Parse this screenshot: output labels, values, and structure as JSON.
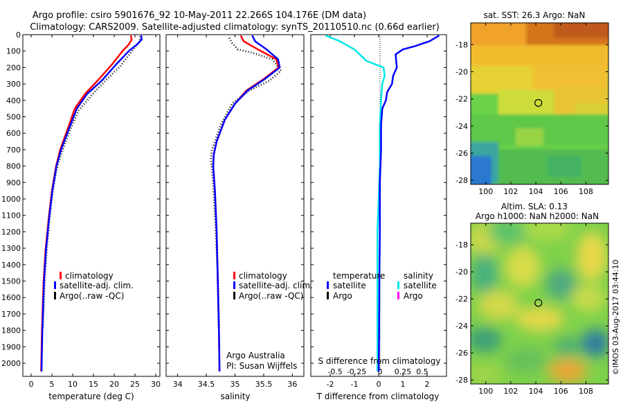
{
  "header": {
    "line1": "Argo profile: csiro 5901676_92 10-May-2011 22.266S 104.176E (DM data)",
    "line2": "Climatology: CARS2009. Satellite-adjusted climatology: synTS_20110510.nc (0.66d earlier)"
  },
  "credit": {
    "text": "Argo Australia",
    "pi": "PI: Susan Wijffels"
  },
  "timestamp": "©IMOS 03-Aug-2017 03:44:10",
  "colors": {
    "climatology": "#ff0000",
    "satellite": "#0000ff",
    "argo": "#000000",
    "s_satellite": "#00e6e6",
    "s_argo": "#ff00ff"
  },
  "chart_data": [
    {
      "type": "line",
      "xlabel": "temperature (deg C)",
      "xlim": [
        -2,
        31
      ],
      "xticks": [
        0,
        5,
        10,
        15,
        20,
        25,
        30
      ],
      "ylim": [
        0,
        2080
      ],
      "yticks": [
        0,
        100,
        200,
        300,
        400,
        500,
        600,
        700,
        800,
        900,
        1000,
        1100,
        1200,
        1300,
        1400,
        1500,
        1600,
        1700,
        1800,
        1900,
        2000
      ],
      "legend": [
        "climatology",
        "satellite-adj. clim.",
        "Argo(..raw -QC)"
      ],
      "series": [
        {
          "name": "climatology",
          "x": [
            24.0,
            24.2,
            23.5,
            22.0,
            19.5,
            16.0,
            13.0,
            10.5,
            9.0,
            7.0,
            6.0,
            5.0,
            4.3,
            3.5,
            3.0,
            2.6,
            2.4
          ],
          "y": [
            5,
            30,
            60,
            100,
            180,
            280,
            360,
            450,
            560,
            700,
            800,
            950,
            1100,
            1300,
            1500,
            1800,
            2050
          ]
        },
        {
          "name": "satellite-adj. clim.",
          "x": [
            26.5,
            26.6,
            25.5,
            23.5,
            20.5,
            17.0,
            13.5,
            11.0,
            9.3,
            7.2,
            6.1,
            5.1,
            4.4,
            3.6,
            3.1,
            2.7,
            2.5
          ],
          "y": [
            5,
            30,
            60,
            100,
            180,
            280,
            360,
            450,
            560,
            700,
            800,
            950,
            1100,
            1300,
            1500,
            1800,
            2050
          ]
        },
        {
          "name": "Argo(..raw -QC)",
          "x": [
            26.3,
            26.2,
            25.2,
            24.0,
            21.5,
            17.5,
            14.5,
            11.5,
            9.5,
            7.3,
            6.1,
            5.1,
            4.4,
            3.7,
            3.2,
            2.8
          ],
          "y": [
            10,
            40,
            70,
            110,
            190,
            290,
            370,
            460,
            570,
            720,
            820,
            970,
            1120,
            1320,
            1520,
            1790
          ]
        }
      ]
    },
    {
      "type": "line",
      "xlabel": "salinity",
      "xlim": [
        33.8,
        36.2
      ],
      "xticks": [
        34,
        34.5,
        35,
        35.5,
        36
      ],
      "ylim": [
        0,
        2080
      ],
      "legend": [
        "climatology",
        "satellite-adj. clim.",
        "Argo(..raw -QC)"
      ],
      "series": [
        {
          "name": "climatology",
          "x": [
            35.1,
            35.15,
            35.4,
            35.72,
            35.76,
            35.5,
            35.2,
            35.0,
            34.82,
            34.68,
            34.63,
            34.62,
            34.65,
            34.68,
            34.7,
            34.72,
            34.73
          ],
          "y": [
            5,
            40,
            90,
            150,
            200,
            270,
            340,
            420,
            520,
            650,
            730,
            800,
            950,
            1200,
            1500,
            1800,
            2050
          ]
        },
        {
          "name": "satellite-adj. clim.",
          "x": [
            35.3,
            35.35,
            35.55,
            35.75,
            35.78,
            35.52,
            35.22,
            35.0,
            34.82,
            34.68,
            34.63,
            34.62,
            34.65,
            34.68,
            34.7,
            34.72,
            34.73
          ],
          "y": [
            5,
            40,
            90,
            150,
            200,
            270,
            340,
            420,
            520,
            650,
            730,
            800,
            950,
            1200,
            1500,
            1800,
            2050
          ]
        },
        {
          "name": "Argo(..raw -QC)",
          "x": [
            34.9,
            34.95,
            35.05,
            35.3,
            35.65,
            35.8,
            35.6,
            35.25,
            34.95,
            34.75,
            34.6,
            34.58,
            34.62,
            34.66,
            34.7,
            34.72
          ],
          "y": [
            20,
            50,
            90,
            110,
            150,
            220,
            280,
            340,
            420,
            550,
            700,
            760,
            900,
            1150,
            1450,
            1800
          ]
        }
      ]
    },
    {
      "type": "line",
      "xlabel": "T difference from climatology",
      "x2label": "S difference from climatology",
      "xlim": [
        -2.8,
        2.8
      ],
      "xticks": [
        -2,
        -1,
        0,
        1,
        2
      ],
      "x2ticks": [
        "-0.5",
        "-0.25",
        "0",
        "0.25",
        "0.5"
      ],
      "legend_temperature_title": "temperature",
      "legend_salinity_title": "salinity",
      "legend_temperature": [
        "satellite",
        "Argo"
      ],
      "legend_salinity": [
        "satellite",
        "Argo"
      ],
      "series": [
        {
          "name": "temperature satellite",
          "x": [
            2.5,
            2.1,
            1.5,
            1.0,
            0.7,
            0.75,
            0.6,
            0.55,
            0.35,
            0.3,
            0.15,
            0.1,
            0.1,
            0.05,
            0.05,
            0.03,
            0.02,
            0.0
          ],
          "y": [
            5,
            40,
            70,
            90,
            120,
            200,
            250,
            300,
            350,
            400,
            450,
            550,
            700,
            900,
            1200,
            1500,
            1800,
            2050
          ]
        },
        {
          "name": "salinity satellite",
          "x": [
            -2.2,
            -1.6,
            -1.0,
            -0.5,
            0.2,
            0.25,
            0.15,
            0.1,
            0.05,
            0.05,
            0.0,
            -0.05,
            -0.05,
            -0.05,
            -0.05
          ],
          "y": [
            5,
            40,
            90,
            160,
            200,
            250,
            300,
            400,
            550,
            800,
            1000,
            1200,
            1500,
            1800,
            2050
          ]
        }
      ]
    },
    {
      "type": "heatmap",
      "title": "sat. SST: 26.3  Argo: NaN",
      "xticks": [
        100,
        102,
        104,
        106,
        108
      ],
      "yticks": [
        -18,
        -20,
        -22,
        -24,
        -26,
        -28
      ],
      "xlim": [
        98.8,
        109.8
      ],
      "ylim": [
        -28.3,
        -16.4
      ],
      "marker": [
        104.2,
        -22.3
      ]
    },
    {
      "type": "heatmap",
      "title": "Altim. SLA: 0.13",
      "subtitle": "Argo h1000: NaN h2000: NaN",
      "xticks": [
        100,
        102,
        104,
        106,
        108
      ],
      "yticks": [
        -18,
        -20,
        -22,
        -24,
        -26,
        -28
      ],
      "xlim": [
        98.8,
        109.8
      ],
      "ylim": [
        -28.3,
        -16.4
      ],
      "marker": [
        104.2,
        -22.3
      ]
    }
  ]
}
